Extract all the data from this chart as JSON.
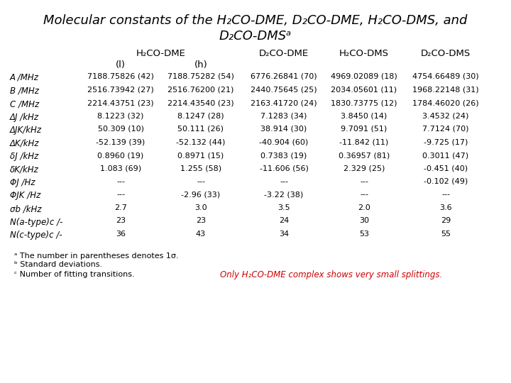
{
  "bg_color": "#ffffff",
  "title_line1": "Molecular constants of the H₂CO-DME, D₂CO-DME, H₂CO-DMS, and",
  "title_line2": "D₂CO-DMSᵃ",
  "col_header_h2co_dme": "H₂CO-DME",
  "col_header_d2co_dme": "D₂CO-DME",
  "col_header_h2co_dms": "H₂CO-DMS",
  "col_header_d2co_dms": "D₂CO-DMS",
  "sub_header_l": "(l)",
  "sub_header_h": "(h)",
  "row_labels": [
    "A /MHz",
    "B /MHz",
    "C /MHz",
    "ΔJ /kHz",
    "ΔJK/kHz",
    "ΔK/kHz",
    "δJ /kHz",
    "δK/kHz",
    "ΦJ /Hz",
    "ΦJK /Hz",
    "σb /kHz",
    "N(a-type)c /-",
    "N(c-type)c /-"
  ],
  "col_data": [
    [
      "7188.75826 (42)",
      "2516.73942 (27)",
      "2214.43751 (23)",
      "8.1223 (32)",
      "50.309 (10)",
      "-52.139 (39)",
      "0.8960 (19)",
      "1.083 (69)",
      "---",
      "---",
      "2.7",
      "23",
      "36"
    ],
    [
      "7188.75282 (54)",
      "2516.76200 (21)",
      "2214.43540 (23)",
      "8.1247 (28)",
      "50.111 (26)",
      "-52.132 (44)",
      "0.8971 (15)",
      "1.255 (58)",
      "---",
      "-2.96 (33)",
      "3.0",
      "23",
      "43"
    ],
    [
      "6776.26841 (70)",
      "2440.75645 (25)",
      "2163.41720 (24)",
      "7.1283 (34)",
      "38.914 (30)",
      "-40.904 (60)",
      "0.7383 (19)",
      "-11.606 (56)",
      "---",
      "-3.22 (38)",
      "3.5",
      "24",
      "34"
    ],
    [
      "4969.02089 (18)",
      "2034.05601 (11)",
      "1830.73775 (12)",
      "3.8450 (14)",
      "9.7091 (51)",
      "-11.842 (11)",
      "0.36957 (81)",
      "2.329 (25)",
      "---",
      "---",
      "2.0",
      "30",
      "53"
    ],
    [
      "4754.66489 (30)",
      "1968.22148 (31)",
      "1784.46020 (26)",
      "3.4532 (24)",
      "7.7124 (70)",
      "-9.725 (17)",
      "0.3011 (47)",
      "-0.451 (40)",
      "-0.102 (49)",
      "---",
      "3.6",
      "29",
      "55"
    ]
  ],
  "footnote_a": "ᵃ The number in parentheses denotes 1σ.",
  "footnote_b": "ᵇ Standard deviations.",
  "footnote_c": "ᶜ Number of fitting transitions.",
  "note_red": "Only H₂CO-DME complex shows very small splittings.",
  "red_color": "#cc0000",
  "title_fontsize": 13,
  "header_fontsize": 9.5,
  "label_fontsize": 8.5,
  "data_fontsize": 8.0,
  "fn_fontsize": 8.0
}
